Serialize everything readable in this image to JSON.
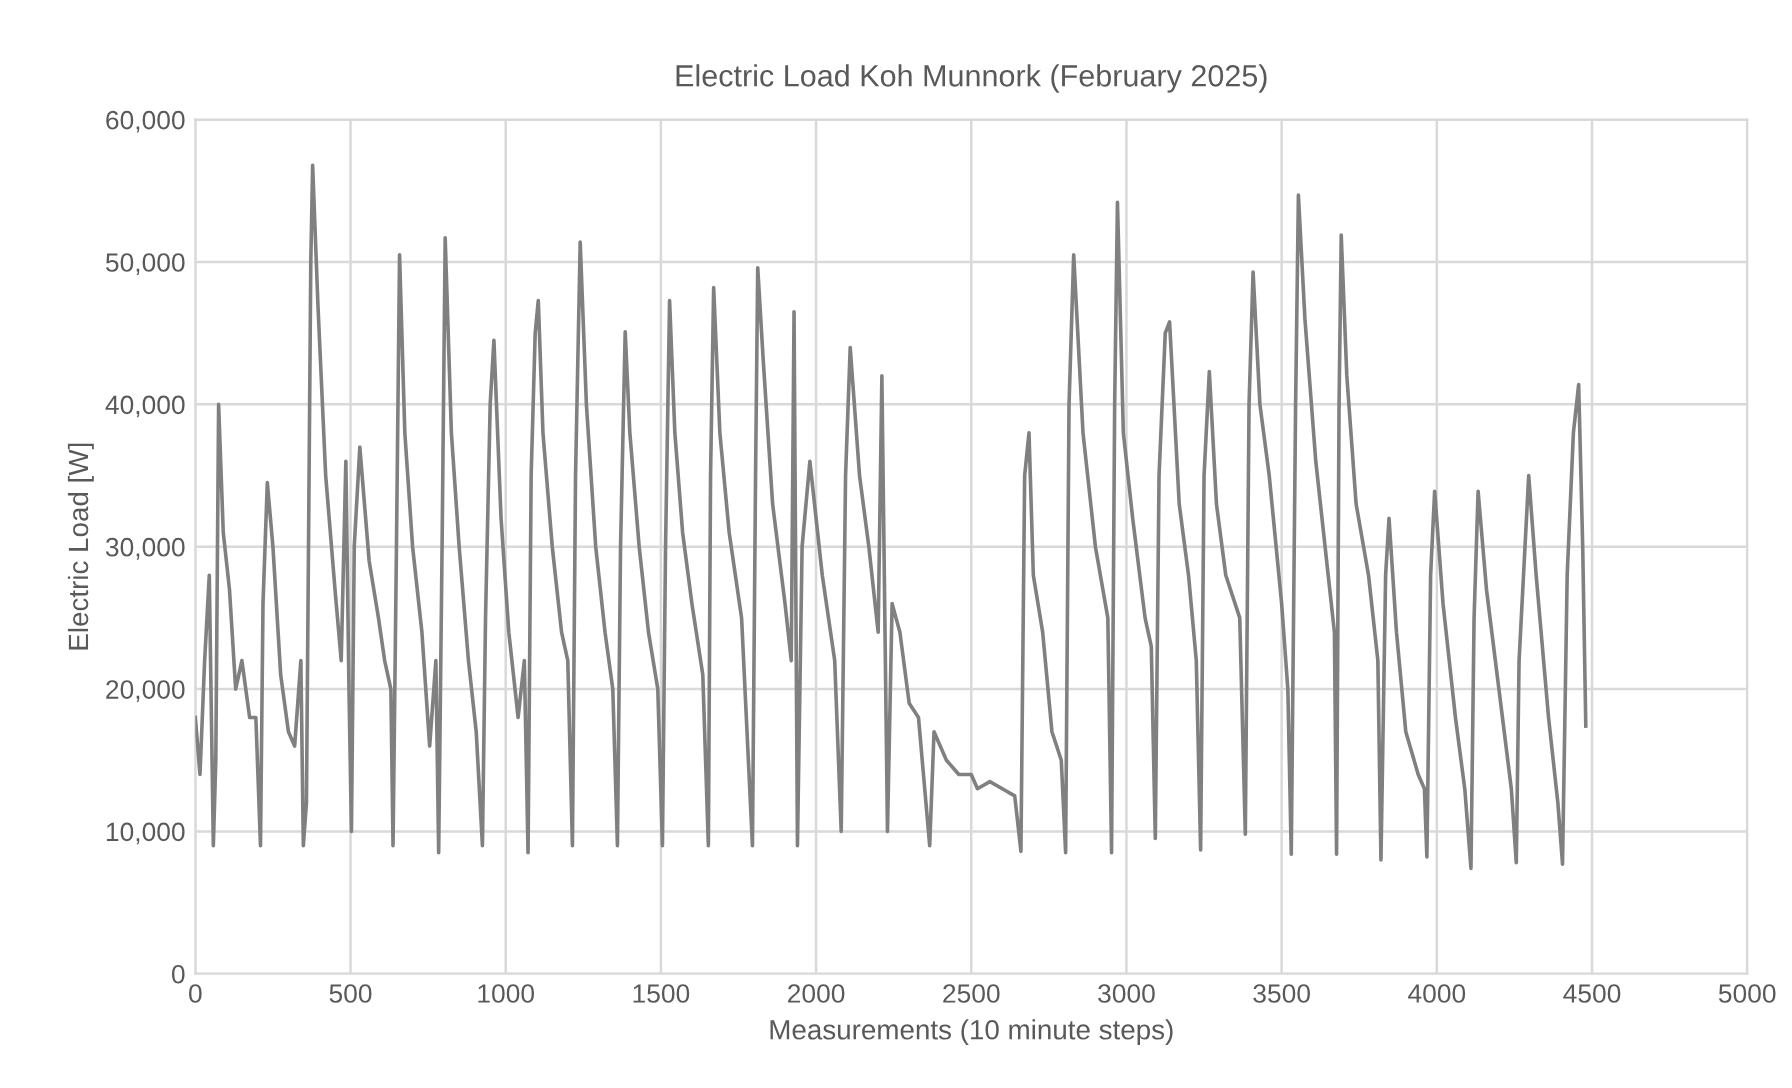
{
  "chart_data": {
    "type": "line",
    "title": "Electric Load Koh Munnork (February 2025)",
    "xlabel": "Measurements (10 minute steps)",
    "ylabel": "Electric Load [W]",
    "xlim": [
      0,
      5000
    ],
    "xticks": [
      0,
      500,
      1000,
      1500,
      2000,
      2500,
      3000,
      3500,
      4000,
      4500,
      5000
    ],
    "ylim": [
      0,
      60000
    ],
    "yticks": [
      {
        "value": 0,
        "label": "0"
      },
      {
        "value": 10000,
        "label": "10,000"
      },
      {
        "value": 20000,
        "label": "20,000"
      },
      {
        "value": 30000,
        "label": "30,000"
      },
      {
        "value": 40000,
        "label": "40,000"
      },
      {
        "value": 50000,
        "label": "50,000"
      },
      {
        "value": 60000,
        "label": "60,000"
      }
    ],
    "grid": true,
    "legend": false,
    "marker": "none",
    "line_style": "solid",
    "series": [
      {
        "color": "#808080",
        "x": [
          0,
          15,
          30,
          45,
          58,
          66,
          75,
          90,
          110,
          130,
          150,
          175,
          195,
          210,
          218,
          232,
          250,
          275,
          300,
          320,
          340,
          348,
          358,
          372,
          378,
          395,
          420,
          450,
          470,
          485,
          495,
          503,
          512,
          530,
          560,
          590,
          610,
          630,
          637,
          648,
          658,
          675,
          700,
          730,
          755,
          775,
          784,
          795,
          805,
          825,
          850,
          880,
          905,
          925,
          935,
          950,
          962,
          985,
          1010,
          1040,
          1060,
          1072,
          1082,
          1095,
          1105,
          1120,
          1150,
          1180,
          1200,
          1215,
          1225,
          1240,
          1260,
          1290,
          1320,
          1345,
          1360,
          1370,
          1385,
          1400,
          1430,
          1460,
          1490,
          1505,
          1515,
          1528,
          1545,
          1570,
          1600,
          1635,
          1653,
          1660,
          1670,
          1690,
          1720,
          1760,
          1795,
          1805,
          1812,
          1830,
          1860,
          1900,
          1920,
          1929,
          1940,
          1955,
          1980,
          2020,
          2060,
          2081,
          2095,
          2110,
          2140,
          2170,
          2200,
          2212,
          2230,
          2245,
          2270,
          2300,
          2330,
          2366,
          2380,
          2420,
          2460,
          2500,
          2520,
          2560,
          2600,
          2640,
          2660,
          2672,
          2686,
          2700,
          2730,
          2760,
          2790,
          2804,
          2815,
          2830,
          2860,
          2900,
          2940,
          2952,
          2962,
          2971,
          2990,
          3020,
          3060,
          3080,
          3093,
          3105,
          3125,
          3139,
          3170,
          3200,
          3225,
          3239,
          3250,
          3267,
          3290,
          3320,
          3365,
          3383,
          3395,
          3408,
          3430,
          3460,
          3500,
          3520,
          3531,
          3545,
          3554,
          3575,
          3610,
          3650,
          3670,
          3677,
          3685,
          3692,
          3710,
          3740,
          3780,
          3810,
          3820,
          3835,
          3846,
          3870,
          3900,
          3940,
          3960,
          3968,
          3980,
          3993,
          4020,
          4060,
          4090,
          4110,
          4120,
          4133,
          4160,
          4200,
          4240,
          4256,
          4265,
          4296,
          4320,
          4360,
          4390,
          4405,
          4420,
          4440,
          4457,
          4470,
          4480
        ],
        "values": [
          18000,
          14000,
          22000,
          28000,
          9000,
          15000,
          40000,
          31000,
          27000,
          20000,
          22000,
          18000,
          18000,
          9000,
          26000,
          34500,
          30000,
          21000,
          17000,
          16000,
          22000,
          9000,
          12000,
          50000,
          56800,
          47000,
          35000,
          27000,
          22000,
          36000,
          20000,
          10000,
          30000,
          37000,
          29000,
          25000,
          22000,
          20000,
          9000,
          30000,
          50500,
          38000,
          30000,
          24000,
          16000,
          22000,
          8500,
          30000,
          51700,
          38000,
          30000,
          22000,
          17000,
          9000,
          25000,
          40000,
          44500,
          32000,
          24000,
          18000,
          22000,
          8500,
          35000,
          45000,
          47300,
          38000,
          30000,
          24000,
          22000,
          9000,
          35000,
          51400,
          40000,
          30000,
          24000,
          20000,
          9000,
          30000,
          45100,
          38000,
          30000,
          24000,
          20000,
          9000,
          30000,
          47300,
          38000,
          31000,
          26000,
          21000,
          9000,
          35000,
          48200,
          38000,
          31000,
          25000,
          9000,
          35000,
          49600,
          43000,
          33000,
          26000,
          22000,
          46500,
          9000,
          30000,
          36000,
          28000,
          22000,
          10000,
          35000,
          44000,
          35000,
          30000,
          24000,
          42000,
          10000,
          26000,
          24000,
          19000,
          18000,
          9000,
          17000,
          15000,
          14000,
          14000,
          13000,
          13500,
          13000,
          12500,
          8600,
          35000,
          38000,
          28000,
          24000,
          17000,
          15000,
          8500,
          40000,
          50500,
          38000,
          30000,
          25000,
          8500,
          40000,
          54200,
          38000,
          32000,
          25000,
          23000,
          9500,
          35000,
          45000,
          45800,
          33000,
          28000,
          22000,
          8700,
          35000,
          42300,
          33000,
          28000,
          25000,
          9800,
          40000,
          49300,
          40000,
          35000,
          26000,
          20000,
          8400,
          40000,
          54700,
          46000,
          36000,
          28000,
          24000,
          8400,
          40000,
          51900,
          42000,
          33000,
          28000,
          22000,
          8000,
          28000,
          32000,
          24000,
          17000,
          14000,
          13000,
          8200,
          28000,
          33900,
          26000,
          18000,
          13000,
          7400,
          25000,
          33900,
          27000,
          20000,
          13000,
          7800,
          22000,
          35000,
          28000,
          18000,
          12000,
          7700,
          28000,
          38000,
          41400,
          30000,
          17400
        ]
      }
    ]
  }
}
